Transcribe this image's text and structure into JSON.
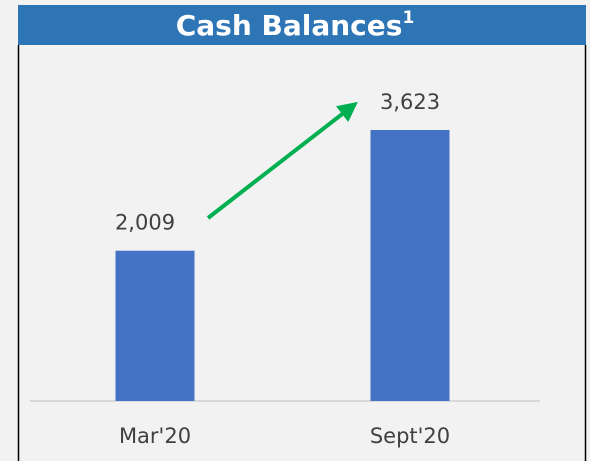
{
  "chart_data": {
    "type": "bar",
    "title": "Cash Balances",
    "title_superscript": "1",
    "categories": [
      "Mar'20",
      "Sept'20"
    ],
    "values": [
      2009,
      3623
    ],
    "value_labels": [
      "2,009",
      "3,623"
    ],
    "color": "#4472c4"
  }
}
